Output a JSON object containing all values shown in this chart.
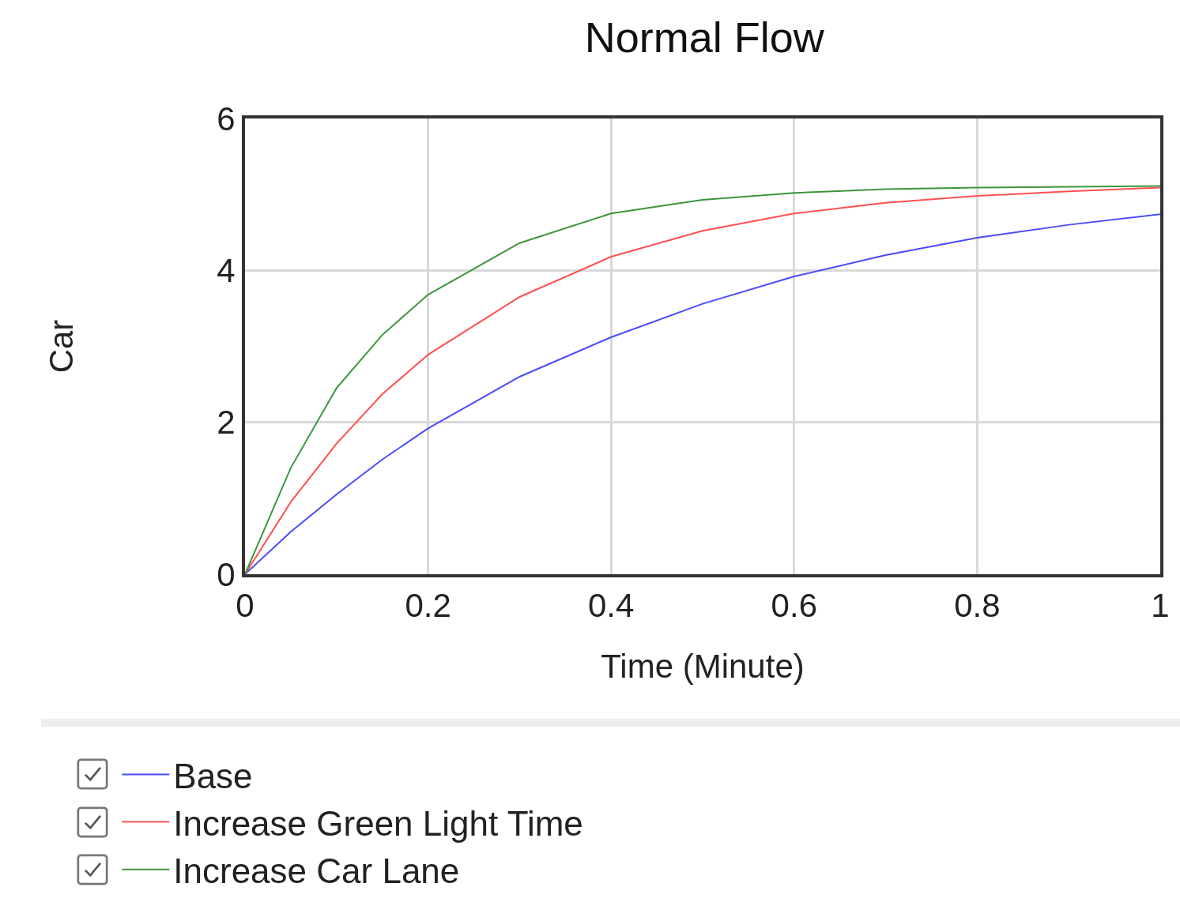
{
  "chart_data": {
    "type": "line",
    "title": "Normal Flow",
    "xlabel": "Time (Minute)",
    "ylabel": "Car",
    "x": [
      0,
      0.05,
      0.1,
      0.15,
      0.2,
      0.3,
      0.4,
      0.5,
      0.6,
      0.7,
      0.8,
      0.9,
      1
    ],
    "series": [
      {
        "name": "Base",
        "color": "#4a4aff",
        "values": [
          0,
          0.56,
          1.05,
          1.51,
          1.92,
          2.6,
          3.12,
          3.56,
          3.92,
          4.2,
          4.43,
          4.6,
          4.74
        ]
      },
      {
        "name": "Increase Green Light Time",
        "color": "#ff5050",
        "values": [
          0,
          0.95,
          1.72,
          2.37,
          2.89,
          3.65,
          4.18,
          4.52,
          4.75,
          4.89,
          4.98,
          5.04,
          5.09
        ]
      },
      {
        "name": "Increase Car Lane",
        "color": "#3c963c",
        "values": [
          0,
          1.4,
          2.45,
          3.15,
          3.68,
          4.36,
          4.75,
          4.93,
          5.02,
          5.07,
          5.09,
          5.1,
          5.11
        ]
      }
    ],
    "xlim": [
      0,
      1
    ],
    "xticks": [
      0,
      0.2,
      0.4,
      0.6,
      0.8,
      1
    ],
    "ylim": [
      0,
      6
    ],
    "yticks": [
      0,
      2,
      4,
      6
    ],
    "grid": true,
    "legend": "bottom",
    "marker": "none",
    "line_style": "solid"
  }
}
